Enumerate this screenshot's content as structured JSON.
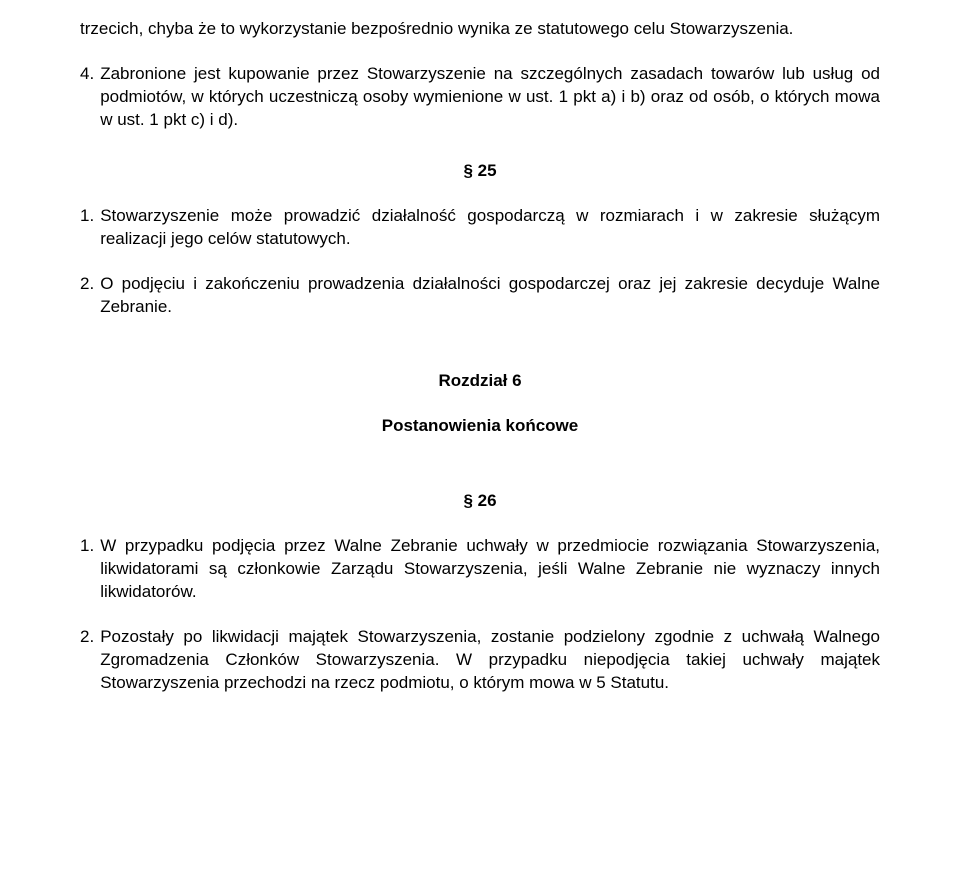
{
  "top_para": "trzecich, chyba że to wykorzystanie bezpośrednio wynika ze statutowego celu Stowarzyszenia.",
  "p4_num": "4.",
  "p4": "Zabronione jest kupowanie przez Stowarzyszenie na szczególnych zasadach towarów lub usług od podmiotów, w których uczestniczą osoby wymienione w ust. 1 pkt a) i b) oraz od osób, o których mowa w ust. 1 pkt c) i d).",
  "s25": "§ 25",
  "s25_1_num": "1.",
  "s25_1": "Stowarzyszenie może prowadzić działalność gospodarczą w rozmiarach i w zakresie służącym realizacji jego celów statutowych.",
  "s25_2_num": "2.",
  "s25_2": "O podjęciu i zakończeniu prowadzenia działalności gospodarczej oraz jej zakresie decyduje Walne Zebranie.",
  "chapter": "Rozdział 6",
  "chapter_sub": "Postanowienia końcowe",
  "s26": "§ 26",
  "s26_1_num": "1.",
  "s26_1": "W przypadku podjęcia przez Walne Zebranie uchwały w przedmiocie rozwiązania Stowarzyszenia, likwidatorami są członkowie Zarządu Stowarzyszenia, jeśli Walne Zebranie nie wyznaczy innych likwidatorów.",
  "s26_2_num": "2.",
  "s26_2": "Pozostały po likwidacji majątek Stowarzyszenia, zostanie podzielony zgodnie z uchwałą Walnego Zgromadzenia Członków Stowarzyszenia. W przypadku niepodjęcia takiej uchwały majątek Stowarzyszenia przechodzi na rzecz podmiotu, o którym mowa w 5 Statutu."
}
